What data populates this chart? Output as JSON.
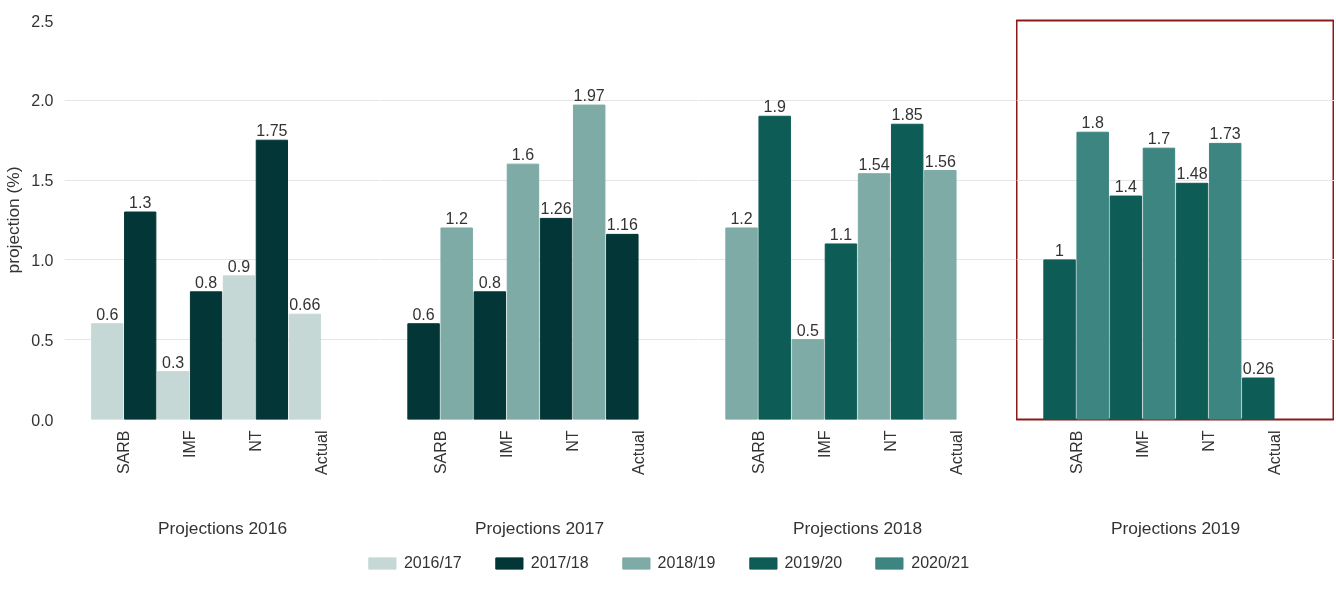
{
  "chart_data": [
    {
      "type": "bar",
      "xlabel": "Projections 2016",
      "ylabel": "projection (%)",
      "categories": [
        "SARB",
        "IMF",
        "NT",
        "Actual"
      ],
      "ylim": [
        0,
        2.5
      ],
      "yticks": [
        {
          "value": 0,
          "label": "0.0"
        },
        {
          "value": 0.5,
          "label": "0.5"
        },
        {
          "value": 1,
          "label": "1.0"
        },
        {
          "value": 1.5,
          "label": "1.5"
        },
        {
          "value": 2,
          "label": "2.0"
        },
        {
          "value": 2.5,
          "label": "2.5"
        }
      ],
      "grid": "y",
      "data_labels": true,
      "legend": "bottom",
      "series": [
        {
          "name": "2016/17",
          "color": "#c5d8d5",
          "values": [
            0.6,
            0.3,
            0.9,
            0.66
          ]
        },
        {
          "name": "2017/18",
          "color": "#033636",
          "values": [
            1.3,
            0.8,
            1.75,
            null
          ]
        }
      ]
    },
    {
      "type": "bar",
      "xlabel": "Projections 2017",
      "categories": [
        "SARB",
        "IMF",
        "NT",
        "Actual"
      ],
      "ylim": [
        0,
        2.5
      ],
      "yticks": [
        0,
        0.5,
        1,
        1.5,
        2,
        2.5
      ],
      "tick_labels": "x",
      "grid": "y",
      "data_labels": true,
      "legend": "bottom",
      "series": [
        {
          "color": "#033636",
          "values": [
            0.6,
            0.8,
            1.26,
            1.16
          ]
        },
        {
          "name": "2018/19",
          "color": "#7eaba6",
          "values": [
            1.2,
            1.6,
            1.97,
            null
          ]
        }
      ]
    },
    {
      "type": "bar",
      "xlabel": "Projections 2018",
      "categories": [
        "SARB",
        "IMF",
        "NT",
        "Actual"
      ],
      "ylim": [
        0,
        2.5
      ],
      "yticks": [
        0,
        0.5,
        1,
        1.5,
        2,
        2.5
      ],
      "tick_labels": "x",
      "grid": "y",
      "data_labels": true,
      "legend": "bottom",
      "series": [
        {
          "color": "#7eaba6",
          "values": [
            1.2,
            0.5,
            1.54,
            1.56
          ]
        },
        {
          "name": "2019/20",
          "color": "#0e5c56",
          "values": [
            1.9,
            1.1,
            1.85,
            null
          ]
        }
      ]
    },
    {
      "type": "bar",
      "xlabel": "Projections 2019",
      "categories": [
        "SARB",
        "IMF",
        "NT",
        "Actual"
      ],
      "ylim": [
        0,
        2.5
      ],
      "yticks": [
        0,
        0.5,
        1,
        1.5,
        2,
        2.5
      ],
      "tick_labels": "x",
      "grid": "y",
      "data_labels": true,
      "legend": "bottom",
      "series": [
        {
          "color": "#0e5c56",
          "values": [
            1.0,
            1.4,
            1.48,
            0.26
          ]
        },
        {
          "name": "2020/21",
          "color": "#3c8580",
          "values": [
            1.8,
            1.7,
            1.73,
            null
          ]
        }
      ]
    }
  ]
}
